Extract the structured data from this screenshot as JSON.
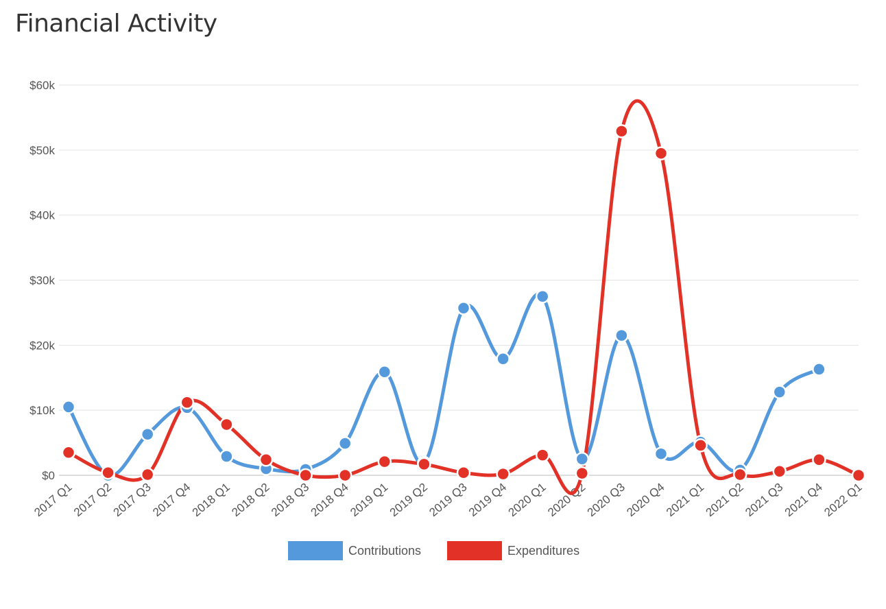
{
  "page": {
    "title": "Financial Activity"
  },
  "chart_data": {
    "type": "line",
    "title": "Financial Activity",
    "xlabel": "",
    "ylabel": "",
    "categories": [
      "2017 Q1",
      "2017 Q2",
      "2017 Q3",
      "2017 Q4",
      "2018 Q1",
      "2018 Q2",
      "2018 Q3",
      "2018 Q4",
      "2019 Q1",
      "2019 Q2",
      "2019 Q3",
      "2019 Q4",
      "2020 Q1",
      "2020 Q2",
      "2020 Q3",
      "2020 Q4",
      "2021 Q1",
      "2021 Q2",
      "2021 Q3",
      "2021 Q4",
      "2022 Q1"
    ],
    "ylim": [
      0,
      60000
    ],
    "yticks": [
      0,
      10000,
      20000,
      30000,
      40000,
      50000,
      60000
    ],
    "ytick_labels": [
      "$0",
      "$10k",
      "$20k",
      "$30k",
      "$40k",
      "$50k",
      "$60k"
    ],
    "grid": true,
    "legend_position": "bottom",
    "series": [
      {
        "name": "Contributions",
        "color": "#5499db",
        "values": [
          10500,
          0,
          6300,
          10400,
          2900,
          1000,
          900,
          4900,
          15900,
          1900,
          25700,
          17900,
          27500,
          2500,
          21500,
          3300,
          5100,
          800,
          12800,
          16300,
          null
        ]
      },
      {
        "name": "Expenditures",
        "color": "#e23127",
        "values": [
          3500,
          400,
          100,
          11200,
          7800,
          2400,
          0,
          0,
          2100,
          1700,
          400,
          200,
          3100,
          300,
          52900,
          49500,
          4600,
          100,
          600,
          2400,
          0
        ]
      }
    ]
  }
}
